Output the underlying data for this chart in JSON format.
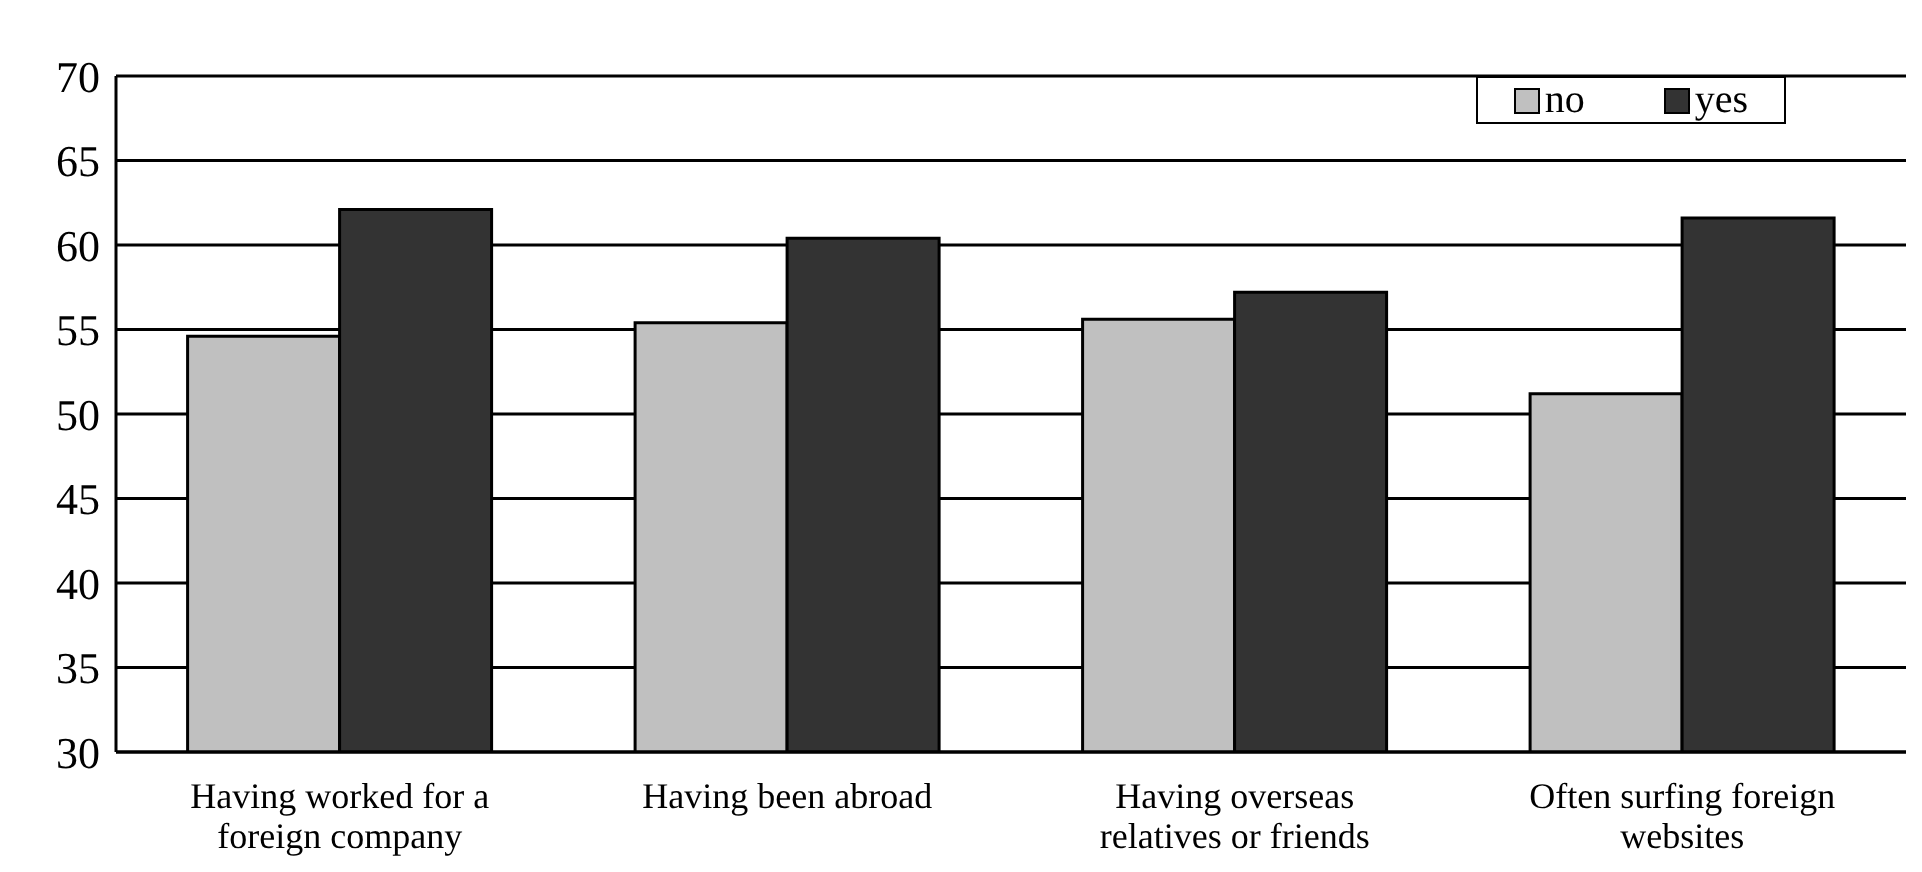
{
  "chart_data": {
    "type": "bar",
    "categories": [
      "Having worked for a foreign company",
      "Having been abroad",
      "Having overseas relatives or friends",
      "Often surfing foreign websites"
    ],
    "series": [
      {
        "name": "no",
        "color": "#c0c0c0",
        "values": [
          54.6,
          55.4,
          55.6,
          51.2
        ]
      },
      {
        "name": "yes",
        "color": "#333333",
        "values": [
          62.1,
          60.4,
          57.2,
          61.6
        ]
      }
    ],
    "ylim": [
      30,
      70
    ],
    "yticks": [
      30,
      35,
      40,
      45,
      50,
      55,
      60,
      65,
      70
    ],
    "grid": "y",
    "legend": "top right"
  }
}
